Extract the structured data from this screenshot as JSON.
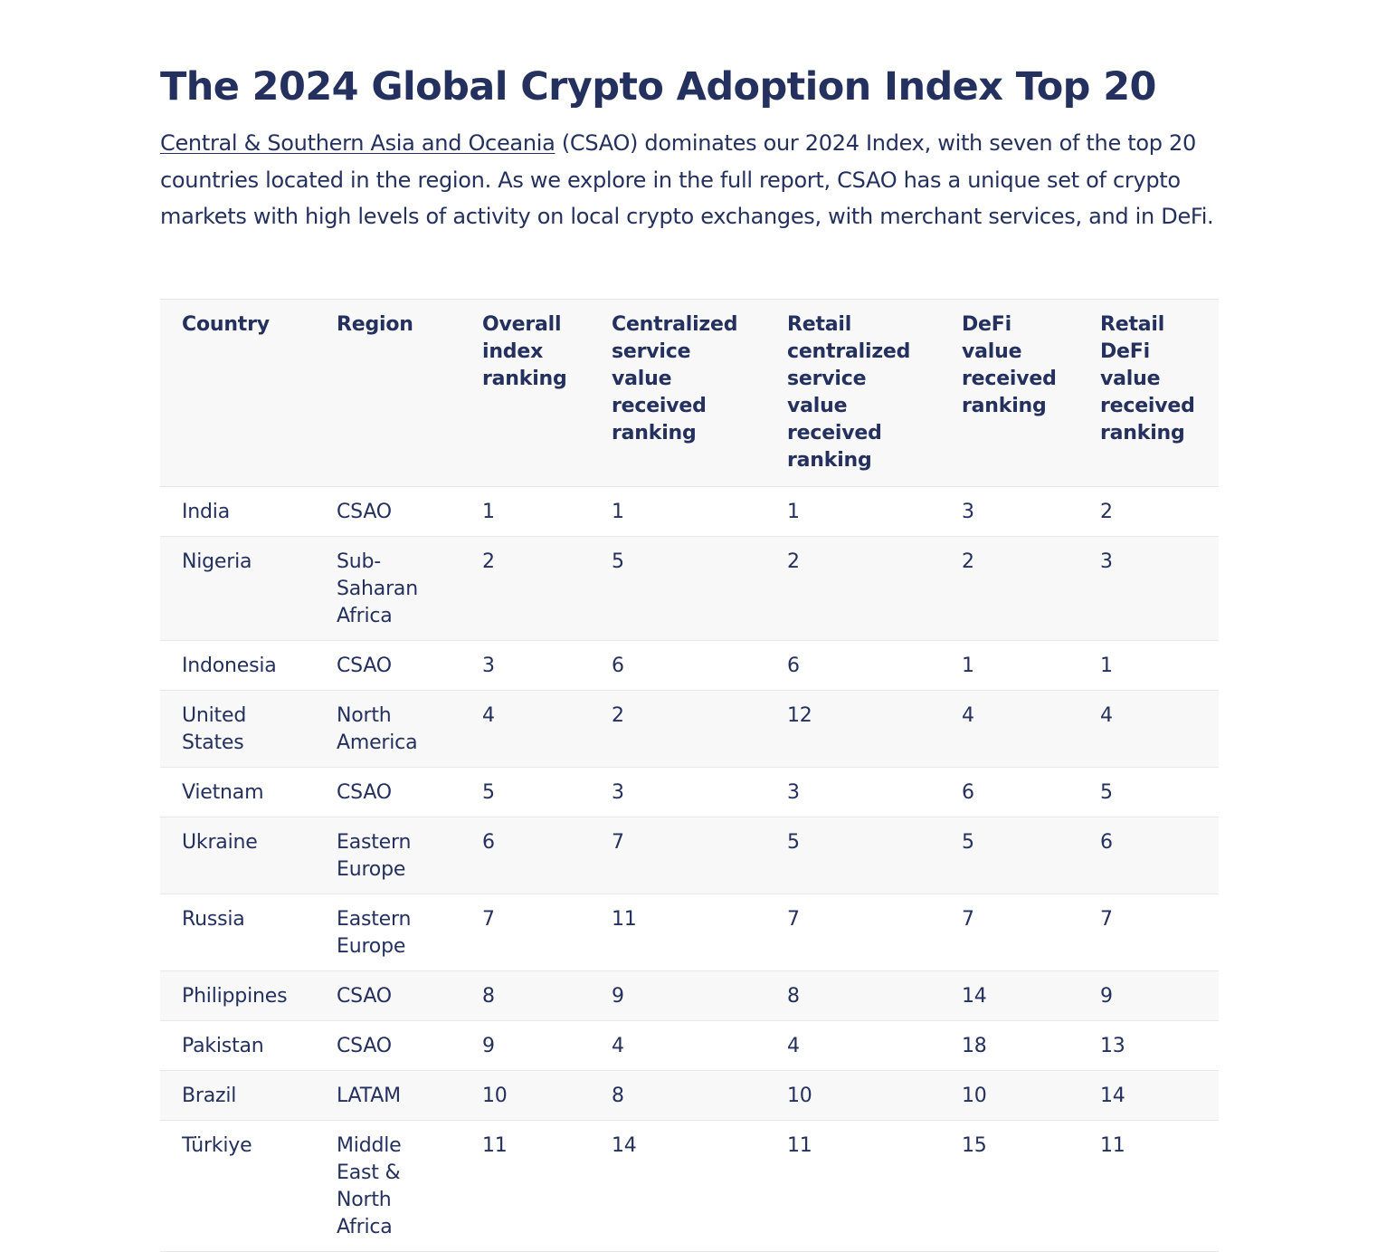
{
  "article": {
    "title": "The 2024 Global Crypto Adoption Index Top 20",
    "intro_link": "Central & Southern Asia and Oceania",
    "intro_text": " (CSAO) dominates our 2024 Index, with seven of the top 20 countries located in the region. As we explore in the full report, CSAO has a unique set of crypto markets with high levels of activity on local crypto exchanges, with merchant services, and in DeFi."
  },
  "table": {
    "headers": [
      "Country",
      "Region",
      "Overall index ranking",
      "Centralized service value received ranking",
      "Retail centralized service value received ranking",
      "DeFi value received ranking",
      "Retail DeFi value received ranking"
    ],
    "rows": [
      [
        "India",
        "CSAO",
        "1",
        "1",
        "1",
        "3",
        "2"
      ],
      [
        "Nigeria",
        "Sub-Saharan Africa",
        "2",
        "5",
        "2",
        "2",
        "3"
      ],
      [
        "Indonesia",
        "CSAO",
        "3",
        "6",
        "6",
        "1",
        "1"
      ],
      [
        "United States",
        "North America",
        "4",
        "2",
        "12",
        "4",
        "4"
      ],
      [
        "Vietnam",
        "CSAO",
        "5",
        "3",
        "3",
        "6",
        "5"
      ],
      [
        "Ukraine",
        "Eastern Europe",
        "6",
        "7",
        "5",
        "5",
        "6"
      ],
      [
        "Russia",
        "Eastern Europe",
        "7",
        "11",
        "7",
        "7",
        "7"
      ],
      [
        "Philippines",
        "CSAO",
        "8",
        "9",
        "8",
        "14",
        "9"
      ],
      [
        "Pakistan",
        "CSAO",
        "9",
        "4",
        "4",
        "18",
        "13"
      ],
      [
        "Brazil",
        "LATAM",
        "10",
        "8",
        "10",
        "10",
        "14"
      ],
      [
        "Türkiye",
        "Middle East & North Africa",
        "11",
        "14",
        "11",
        "15",
        "11"
      ]
    ]
  },
  "colors": {
    "text": "#24305e",
    "header_bg": "#f8f8f8",
    "row_alt_bg": "#f8f8f8",
    "border": "#e6e6e6"
  }
}
